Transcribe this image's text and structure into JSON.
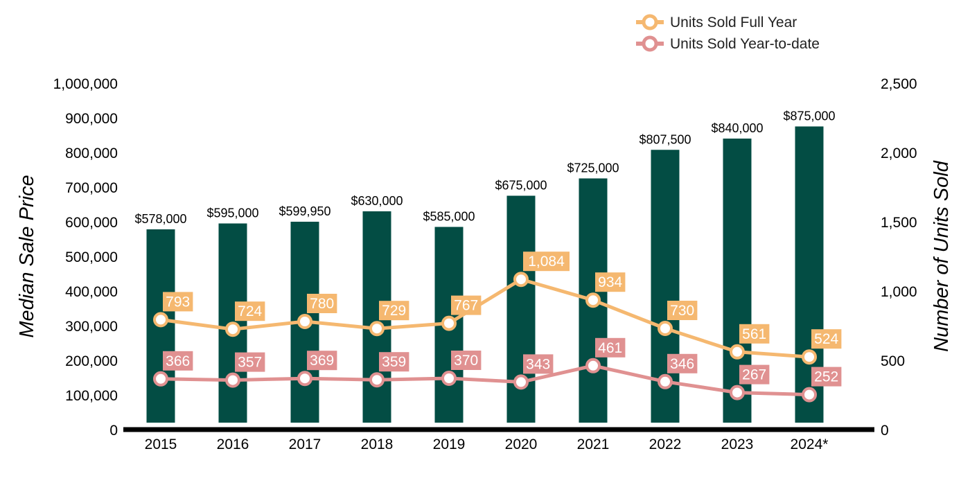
{
  "chart_data": {
    "type": "bar",
    "categories": [
      "2015",
      "2016",
      "2017",
      "2018",
      "2019",
      "2020",
      "2021",
      "2022",
      "2023",
      "2024*"
    ],
    "series": [
      {
        "name": "",
        "kind": "bar",
        "axis": "left",
        "values": [
          578000,
          595000,
          599950,
          630000,
          585000,
          675000,
          725000,
          807500,
          840000,
          875000
        ],
        "labels": [
          "$578,000",
          "$595,000",
          "$599,950",
          "$630,000",
          "$585,000",
          "$675,000",
          "$725,000",
          "$807,500",
          "$840,000",
          "$875,000"
        ],
        "color": "#034d44"
      },
      {
        "name": "Units Sold Full Year",
        "kind": "line",
        "axis": "right",
        "values": [
          793,
          724,
          780,
          729,
          767,
          1084,
          934,
          730,
          561,
          524
        ],
        "labels": [
          "793",
          "724",
          "780",
          "729",
          "767",
          "1,084",
          "934",
          "730",
          "561",
          "524"
        ],
        "color": "#f5b870"
      },
      {
        "name": "Units Sold Year-to-date",
        "kind": "line",
        "axis": "right",
        "values": [
          366,
          357,
          369,
          359,
          370,
          343,
          461,
          346,
          267,
          252
        ],
        "labels": [
          "366",
          "357",
          "369",
          "359",
          "370",
          "343",
          "461",
          "346",
          "267",
          "252"
        ],
        "color": "#e09191"
      }
    ],
    "ylabel": "Median Sale Price",
    "y2label": "Number of Units Sold",
    "ylim": [
      0,
      1000000
    ],
    "y2lim": [
      0,
      2500
    ],
    "yticks": [
      "0",
      "100,000",
      "200,000",
      "300,000",
      "400,000",
      "500,000",
      "600,000",
      "700,000",
      "800,000",
      "900,000",
      "1,000,000"
    ],
    "y2ticks": [
      "0",
      "500",
      "1,000",
      "1,500",
      "2,000",
      "2,500"
    ],
    "grid": false,
    "legend_position": "top-right"
  }
}
